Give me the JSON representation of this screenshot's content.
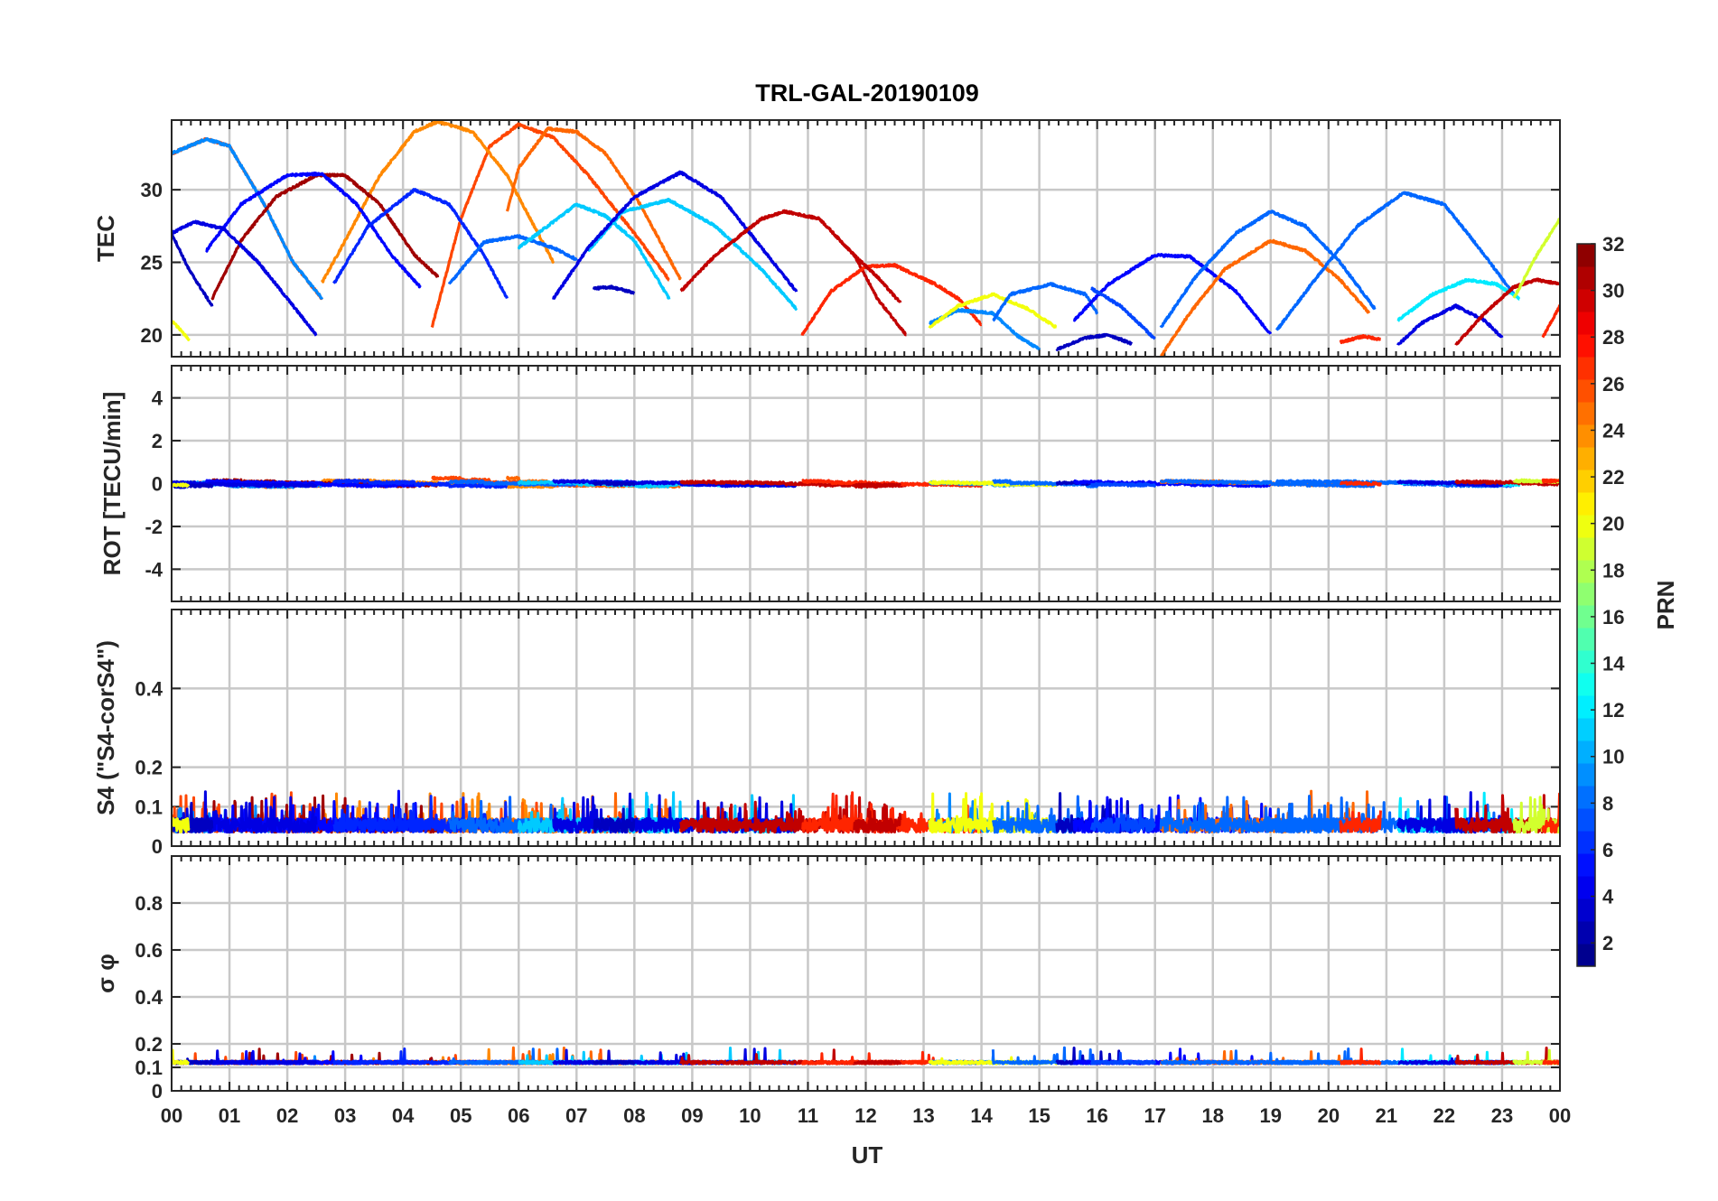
{
  "chart_data": {
    "type": "line",
    "title": "TRL-GAL-20190109",
    "xlabel": "UT",
    "x_ticks": [
      "00",
      "01",
      "02",
      "03",
      "04",
      "05",
      "06",
      "07",
      "08",
      "09",
      "10",
      "11",
      "12",
      "13",
      "14",
      "15",
      "16",
      "17",
      "18",
      "19",
      "20",
      "21",
      "22",
      "23",
      "00"
    ],
    "xlim": [
      0,
      24
    ],
    "colorbar": {
      "label": "PRN",
      "range": [
        1,
        32
      ],
      "ticks": [
        "2",
        "4",
        "6",
        "8",
        "10",
        "12",
        "14",
        "16",
        "18",
        "20",
        "22",
        "24",
        "26",
        "28",
        "30",
        "32"
      ]
    },
    "panels": [
      {
        "ylabel": "TEC",
        "ylim": [
          18.5,
          34.8
        ],
        "yticks": [
          "20",
          "25",
          "30"
        ],
        "series": [
          {
            "prn": 26,
            "points": [
              [
                4.5,
                20.5
              ],
              [
                5.0,
                28.0
              ],
              [
                5.5,
                33.0
              ],
              [
                6.0,
                34.5
              ],
              [
                6.6,
                33.6
              ],
              [
                7.2,
                31.0
              ],
              [
                8.0,
                27.0
              ],
              [
                8.6,
                23.8
              ]
            ]
          },
          {
            "prn": 26,
            "points": [
              [
                0.0,
                32.5
              ],
              [
                0.6,
                33.5
              ],
              [
                1.0,
                33.0
              ],
              [
                1.6,
                29.0
              ],
              [
                2.1,
                25.0
              ],
              [
                2.6,
                22.5
              ]
            ]
          },
          {
            "prn": 9,
            "points": [
              [
                0.0,
                32.5
              ],
              [
                0.6,
                33.5
              ],
              [
                1.0,
                33.0
              ],
              [
                1.6,
                29.0
              ],
              [
                2.1,
                25.0
              ],
              [
                2.6,
                22.5
              ]
            ]
          },
          {
            "prn": 24,
            "points": [
              [
                2.6,
                23.6
              ],
              [
                3.0,
                26.5
              ],
              [
                3.6,
                31.0
              ],
              [
                4.2,
                34.0
              ],
              [
                4.6,
                34.7
              ],
              [
                5.2,
                34.0
              ],
              [
                5.8,
                31.0
              ],
              [
                6.2,
                28.0
              ],
              [
                6.6,
                25.0
              ]
            ]
          },
          {
            "prn": 25,
            "points": [
              [
                5.8,
                28.5
              ],
              [
                6.0,
                31.5
              ],
              [
                6.5,
                34.2
              ],
              [
                7.0,
                34.0
              ],
              [
                7.5,
                32.5
              ],
              [
                8.1,
                29.0
              ],
              [
                8.8,
                23.8
              ]
            ]
          },
          {
            "prn": 31,
            "points": [
              [
                0.7,
                22.5
              ],
              [
                1.2,
                26.5
              ],
              [
                1.8,
                29.5
              ],
              [
                2.5,
                31.0
              ],
              [
                3.0,
                31.0
              ],
              [
                3.6,
                29.0
              ],
              [
                4.2,
                25.5
              ],
              [
                4.6,
                24.0
              ]
            ]
          },
          {
            "prn": 5,
            "points": [
              [
                0.6,
                25.8
              ],
              [
                1.2,
                29.0
              ],
              [
                2.0,
                31.0
              ],
              [
                2.6,
                31.1
              ],
              [
                3.2,
                29.0
              ],
              [
                3.8,
                25.5
              ],
              [
                4.3,
                23.3
              ]
            ]
          },
          {
            "prn": 4,
            "points": [
              [
                0.0,
                27.0
              ],
              [
                0.4,
                27.8
              ],
              [
                0.9,
                27.3
              ],
              [
                1.5,
                25.0
              ],
              [
                2.0,
                22.5
              ],
              [
                2.5,
                20.0
              ]
            ]
          },
          {
            "prn": 3,
            "points": [
              [
                0.0,
                27.0
              ],
              [
                0.3,
                24.5
              ],
              [
                0.7,
                22.0
              ]
            ]
          },
          {
            "prn": 6,
            "points": [
              [
                2.8,
                23.5
              ],
              [
                3.4,
                27.5
              ],
              [
                4.2,
                30.0
              ],
              [
                4.8,
                29.0
              ],
              [
                5.4,
                25.5
              ],
              [
                5.8,
                22.5
              ]
            ]
          },
          {
            "prn": 8,
            "points": [
              [
                4.8,
                23.5
              ],
              [
                5.4,
                26.4
              ],
              [
                6.0,
                26.8
              ],
              [
                6.6,
                26.0
              ],
              [
                7.0,
                25.2
              ]
            ]
          },
          {
            "prn": 11,
            "points": [
              [
                6.0,
                26.0
              ],
              [
                6.5,
                27.5
              ],
              [
                7.0,
                29.0
              ],
              [
                7.5,
                28.2
              ],
              [
                8.0,
                26.5
              ],
              [
                8.6,
                22.5
              ]
            ]
          },
          {
            "prn": 11,
            "points": [
              [
                7.2,
                25.8
              ],
              [
                7.8,
                28.5
              ],
              [
                8.6,
                29.3
              ],
              [
                9.4,
                27.5
              ],
              [
                10.2,
                24.5
              ],
              [
                10.8,
                21.8
              ]
            ]
          },
          {
            "prn": 4,
            "points": [
              [
                6.6,
                22.5
              ],
              [
                7.2,
                26.0
              ],
              [
                8.0,
                29.5
              ],
              [
                8.8,
                31.2
              ],
              [
                9.5,
                29.5
              ],
              [
                10.2,
                26.0
              ],
              [
                10.8,
                23.0
              ]
            ]
          },
          {
            "prn": 3,
            "points": [
              [
                7.3,
                23.2
              ],
              [
                7.6,
                23.3
              ],
              [
                8.0,
                22.9
              ]
            ]
          },
          {
            "prn": 30,
            "points": [
              [
                8.8,
                23.0
              ],
              [
                9.4,
                25.5
              ],
              [
                10.2,
                28.0
              ],
              [
                10.6,
                28.5
              ],
              [
                11.2,
                28.0
              ],
              [
                11.8,
                25.5
              ],
              [
                12.2,
                22.5
              ],
              [
                12.7,
                20.0
              ]
            ]
          },
          {
            "prn": 27,
            "points": [
              [
                10.9,
                20.0
              ],
              [
                11.4,
                23.0
              ],
              [
                12.0,
                24.7
              ],
              [
                12.5,
                24.8
              ],
              [
                13.2,
                23.5
              ],
              [
                13.6,
                22.5
              ],
              [
                14.0,
                20.7
              ]
            ]
          },
          {
            "prn": 30,
            "points": [
              [
                11.8,
                25.5
              ],
              [
                12.2,
                24.0
              ],
              [
                12.6,
                22.2
              ]
            ]
          },
          {
            "prn": 9,
            "points": [
              [
                13.1,
                20.8
              ],
              [
                13.6,
                21.7
              ],
              [
                14.2,
                21.5
              ],
              [
                14.6,
                20.0
              ],
              [
                15.0,
                19.0
              ]
            ]
          },
          {
            "prn": 20,
            "points": [
              [
                13.1,
                20.5
              ],
              [
                13.6,
                22.0
              ],
              [
                14.2,
                22.8
              ],
              [
                14.8,
                21.8
              ],
              [
                15.3,
                20.5
              ]
            ]
          },
          {
            "prn": 8,
            "points": [
              [
                14.2,
                21.0
              ],
              [
                14.5,
                22.8
              ],
              [
                15.2,
                23.5
              ],
              [
                15.8,
                22.8
              ],
              [
                16.0,
                21.5
              ]
            ]
          },
          {
            "prn": 3,
            "points": [
              [
                15.3,
                19.0
              ],
              [
                15.8,
                19.8
              ],
              [
                16.2,
                20.0
              ],
              [
                16.6,
                19.4
              ]
            ]
          },
          {
            "prn": 5,
            "points": [
              [
                15.6,
                21.0
              ],
              [
                16.2,
                23.5
              ],
              [
                17.0,
                25.5
              ],
              [
                17.6,
                25.4
              ],
              [
                18.4,
                23.0
              ],
              [
                19.0,
                20.0
              ]
            ]
          },
          {
            "prn": 7,
            "points": [
              [
                15.9,
                23.2
              ],
              [
                16.4,
                22.0
              ],
              [
                16.8,
                20.5
              ],
              [
                17.0,
                19.7
              ]
            ]
          },
          {
            "prn": 25,
            "points": [
              [
                17.1,
                18.5
              ],
              [
                17.6,
                21.5
              ],
              [
                18.2,
                24.5
              ],
              [
                19.0,
                26.5
              ],
              [
                19.6,
                25.8
              ],
              [
                20.2,
                23.8
              ],
              [
                20.7,
                21.5
              ]
            ]
          },
          {
            "prn": 8,
            "points": [
              [
                17.1,
                20.5
              ],
              [
                17.7,
                24.0
              ],
              [
                18.4,
                27.0
              ],
              [
                19.0,
                28.5
              ],
              [
                19.6,
                27.5
              ],
              [
                20.2,
                25.0
              ],
              [
                20.8,
                21.8
              ]
            ]
          },
          {
            "prn": 8,
            "points": [
              [
                19.1,
                20.3
              ],
              [
                19.8,
                24.0
              ],
              [
                20.5,
                27.5
              ],
              [
                21.3,
                29.8
              ],
              [
                22.0,
                29.0
              ],
              [
                22.6,
                26.0
              ],
              [
                23.2,
                22.8
              ]
            ]
          },
          {
            "prn": 27,
            "points": [
              [
                20.2,
                19.5
              ],
              [
                20.6,
                19.9
              ],
              [
                20.9,
                19.7
              ]
            ]
          },
          {
            "prn": 12,
            "points": [
              [
                21.2,
                21.0
              ],
              [
                21.8,
                22.8
              ],
              [
                22.4,
                23.8
              ],
              [
                22.9,
                23.5
              ],
              [
                23.3,
                22.5
              ]
            ]
          },
          {
            "prn": 4,
            "points": [
              [
                21.2,
                19.3
              ],
              [
                21.6,
                20.8
              ],
              [
                22.2,
                22.0
              ],
              [
                22.7,
                21.0
              ],
              [
                23.0,
                19.8
              ]
            ]
          },
          {
            "prn": 30,
            "points": [
              [
                22.2,
                19.3
              ],
              [
                22.7,
                21.5
              ],
              [
                23.2,
                23.3
              ],
              [
                23.6,
                23.8
              ],
              [
                24.0,
                23.5
              ]
            ]
          },
          {
            "prn": 19,
            "points": [
              [
                23.2,
                22.5
              ],
              [
                23.6,
                25.5
              ],
              [
                24.0,
                28.0
              ]
            ]
          },
          {
            "prn": 27,
            "points": [
              [
                23.7,
                19.8
              ],
              [
                24.0,
                22.0
              ]
            ]
          },
          {
            "prn": 20,
            "points": [
              [
                0.0,
                21.0
              ],
              [
                0.3,
                19.7
              ]
            ]
          }
        ]
      },
      {
        "ylabel": "ROT [TECU/min]",
        "ylim": [
          -5.5,
          5.5
        ],
        "yticks": [
          "-4",
          "-2",
          "0",
          "2",
          "4"
        ]
      },
      {
        "ylabel": "S4 (\"S4-corS4\")",
        "ylim": [
          0,
          0.6
        ],
        "yticks": [
          "0",
          "0.1",
          "0.2",
          "0.4"
        ]
      },
      {
        "ylabel": "σ φ",
        "ylim": [
          0,
          1.0
        ],
        "yticks": [
          "0",
          "0.1",
          "0.2",
          "0.4",
          "0.6",
          "0.8"
        ]
      }
    ]
  }
}
